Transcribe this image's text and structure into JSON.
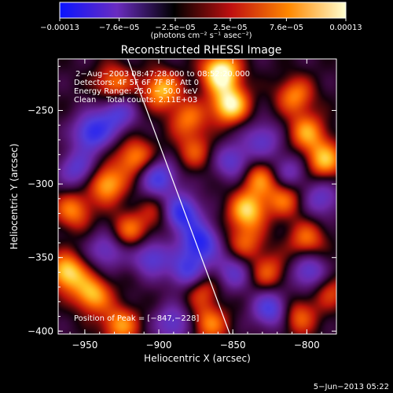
{
  "chart_data": {
    "type": "heatmap",
    "title": "Reconstructed RHESSI Image",
    "xlabel": "Heliocentric X (arcsec)",
    "ylabel": "Heliocentric Y (arcsec)",
    "xlim": [
      -968,
      -780
    ],
    "ylim": [
      -402,
      -215
    ],
    "xticks": [
      -950,
      -900,
      -850,
      -800
    ],
    "xtick_labels": [
      "−950",
      "−900",
      "−850",
      "−800"
    ],
    "yticks": [
      -400,
      -350,
      -300,
      -250
    ],
    "ytick_labels": [
      "−400",
      "−350",
      "−300",
      "−250"
    ],
    "colorbar": {
      "range": [
        -0.00013,
        0.00013
      ],
      "ticks": [
        -0.00013,
        -7.6e-05,
        -2.5e-05,
        2.5e-05,
        7.6e-05,
        0.00013
      ],
      "tick_labels": [
        "−0.00013",
        "−7.6e−05",
        "−2.5e−05",
        "2.5e−05",
        "7.6e−05",
        "0.00013"
      ],
      "units": "(photons cm⁻² s⁻¹ asec⁻²)",
      "colors": [
        "#0a14ff",
        "#6a2cc0",
        "#000000",
        "#c01010",
        "#ff8800",
        "#ffffd0"
      ]
    },
    "annotations": [
      "2−Aug−2003 08:47:28.000 to 08:52:20.000",
      "Detectors: 4F 5F 6F 7F 8F, Att 0",
      "Energy Range: 25.0 − 50.0 keV",
      "Clean    Total counts: 2.11E+03"
    ],
    "peak_label": "Position of Peak = [−847,−228]",
    "peak_position": [
      -847,
      -228
    ],
    "limb_line": [
      [
        -921,
        -215
      ],
      [
        -852,
        -402
      ]
    ],
    "blobs_intensity": [
      [
        -858,
        -224,
        1.0
      ],
      [
        -852,
        -246,
        0.9
      ],
      [
        -930,
        -232,
        0.55
      ],
      [
        -898,
        -236,
        0.7
      ],
      [
        -880,
        -256,
        0.5
      ],
      [
        -808,
        -240,
        0.55
      ],
      [
        -800,
        -265,
        0.6
      ],
      [
        -788,
        -284,
        0.7
      ],
      [
        -815,
        -310,
        0.5
      ],
      [
        -832,
        -296,
        0.55
      ],
      [
        -840,
        -318,
        0.75
      ],
      [
        -842,
        -340,
        0.45
      ],
      [
        -876,
        -278,
        0.4
      ],
      [
        -916,
        -282,
        0.6
      ],
      [
        -935,
        -300,
        0.7
      ],
      [
        -920,
        -332,
        0.5
      ],
      [
        -958,
        -318,
        0.55
      ],
      [
        -962,
        -360,
        0.8
      ],
      [
        -945,
        -375,
        0.7
      ],
      [
        -926,
        -396,
        0.6
      ],
      [
        -872,
        -370,
        0.5
      ],
      [
        -866,
        -395,
        0.55
      ],
      [
        -826,
        -360,
        0.45
      ],
      [
        -800,
        -338,
        0.5
      ],
      [
        -806,
        -390,
        0.5
      ],
      [
        -784,
        -372,
        0.4
      ],
      [
        -900,
        -320,
        0.35
      ]
    ],
    "blobs_negative": [
      [
        -945,
        -265,
        -0.8
      ],
      [
        -928,
        -252,
        -0.6
      ],
      [
        -900,
        -296,
        -0.7
      ],
      [
        -885,
        -320,
        -0.9
      ],
      [
        -872,
        -340,
        -0.85
      ],
      [
        -880,
        -360,
        -0.75
      ],
      [
        -905,
        -350,
        -0.6
      ],
      [
        -850,
        -285,
        -0.55
      ],
      [
        -830,
        -270,
        -0.5
      ],
      [
        -812,
        -292,
        -0.45
      ],
      [
        -824,
        -385,
        -0.7
      ],
      [
        -798,
        -360,
        -0.6
      ],
      [
        -790,
        -310,
        -0.5
      ],
      [
        -955,
        -290,
        -0.55
      ],
      [
        -935,
        -345,
        -0.5
      ],
      [
        -890,
        -395,
        -0.55
      ],
      [
        -850,
        -360,
        -0.5
      ]
    ]
  },
  "footer": {
    "date": "5−Jun−2013 05:22"
  }
}
